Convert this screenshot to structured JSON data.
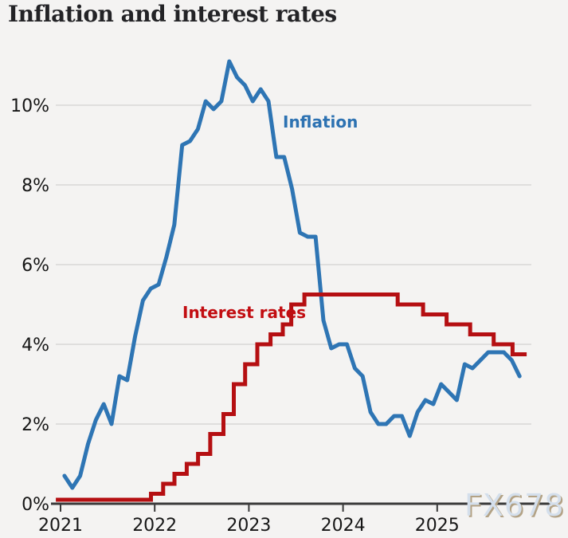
{
  "title": "Inflation and interest rates",
  "watermark": "FX678",
  "colors": {
    "background": "#f4f3f2",
    "inflation_line": "#2e75b4",
    "inflation_label": "#2d72b2",
    "interest_line": "#b50f12",
    "interest_label": "#c20d11",
    "gridline": "#d8d8d6",
    "axis": "#3a3a3a",
    "tick_text": "#161616",
    "title_text": "#232326",
    "watermark_fill": "#d4dfec",
    "watermark_shadow": "#b3a285"
  },
  "chart_data": {
    "type": "line",
    "title": "Inflation and interest rates",
    "xlabel": "",
    "ylabel": "",
    "ylim": [
      0,
      11.5
    ],
    "xlim": [
      2021,
      2026.2
    ],
    "grid": true,
    "legend_position": "inline-labels",
    "yticks": [
      {
        "value": 0,
        "label": "0%"
      },
      {
        "value": 2,
        "label": "2%"
      },
      {
        "value": 4,
        "label": "4%"
      },
      {
        "value": 6,
        "label": "6%"
      },
      {
        "value": 8,
        "label": "8%"
      },
      {
        "value": 10,
        "label": "10%"
      }
    ],
    "xticks": [
      {
        "value": 2021,
        "label": "2021"
      },
      {
        "value": 2022,
        "label": "2022"
      },
      {
        "value": 2023,
        "label": "2023"
      },
      {
        "value": 2024,
        "label": "2024"
      },
      {
        "value": 2025,
        "label": "2025"
      }
    ],
    "series": [
      {
        "name": "Inflation",
        "type": "line",
        "color": "#2e75b4",
        "unit": "percent",
        "start": "2021-01",
        "frequency": "monthly",
        "values": [
          0.7,
          0.4,
          0.7,
          1.5,
          2.1,
          2.5,
          2.0,
          3.2,
          3.1,
          4.2,
          5.1,
          5.4,
          5.5,
          6.2,
          7.0,
          9.0,
          9.1,
          9.4,
          10.1,
          9.9,
          10.1,
          11.1,
          10.7,
          10.5,
          10.1,
          10.4,
          10.1,
          8.7,
          8.7,
          7.9,
          6.8,
          6.7,
          6.7,
          4.6,
          3.9,
          4.0,
          4.0,
          3.4,
          3.2,
          2.3,
          2.0,
          2.0,
          2.2,
          2.2,
          1.7,
          2.3,
          2.6,
          2.5,
          3.0,
          2.8,
          2.6,
          3.5,
          3.4,
          3.6,
          3.8,
          3.8,
          3.8,
          3.6,
          3.2
        ]
      },
      {
        "name": "Interest rates",
        "type": "step",
        "color": "#b50f12",
        "unit": "percent",
        "steps": [
          {
            "t": 2020.95,
            "rate": 0.1
          },
          {
            "t": 2021.96,
            "rate": 0.25
          },
          {
            "t": 2022.09,
            "rate": 0.5
          },
          {
            "t": 2022.21,
            "rate": 0.75
          },
          {
            "t": 2022.34,
            "rate": 1.0
          },
          {
            "t": 2022.46,
            "rate": 1.25
          },
          {
            "t": 2022.59,
            "rate": 1.75
          },
          {
            "t": 2022.73,
            "rate": 2.25
          },
          {
            "t": 2022.84,
            "rate": 3.0
          },
          {
            "t": 2022.96,
            "rate": 3.5
          },
          {
            "t": 2023.09,
            "rate": 4.0
          },
          {
            "t": 2023.23,
            "rate": 4.25
          },
          {
            "t": 2023.36,
            "rate": 4.5
          },
          {
            "t": 2023.45,
            "rate": 5.0
          },
          {
            "t": 2023.59,
            "rate": 5.25
          },
          {
            "t": 2024.58,
            "rate": 5.0
          },
          {
            "t": 2024.85,
            "rate": 4.75
          },
          {
            "t": 2025.1,
            "rate": 4.5
          },
          {
            "t": 2025.35,
            "rate": 4.25
          },
          {
            "t": 2025.6,
            "rate": 4.0
          },
          {
            "t": 2025.8,
            "rate": 3.75
          }
        ],
        "end_t": 2025.95
      }
    ]
  }
}
